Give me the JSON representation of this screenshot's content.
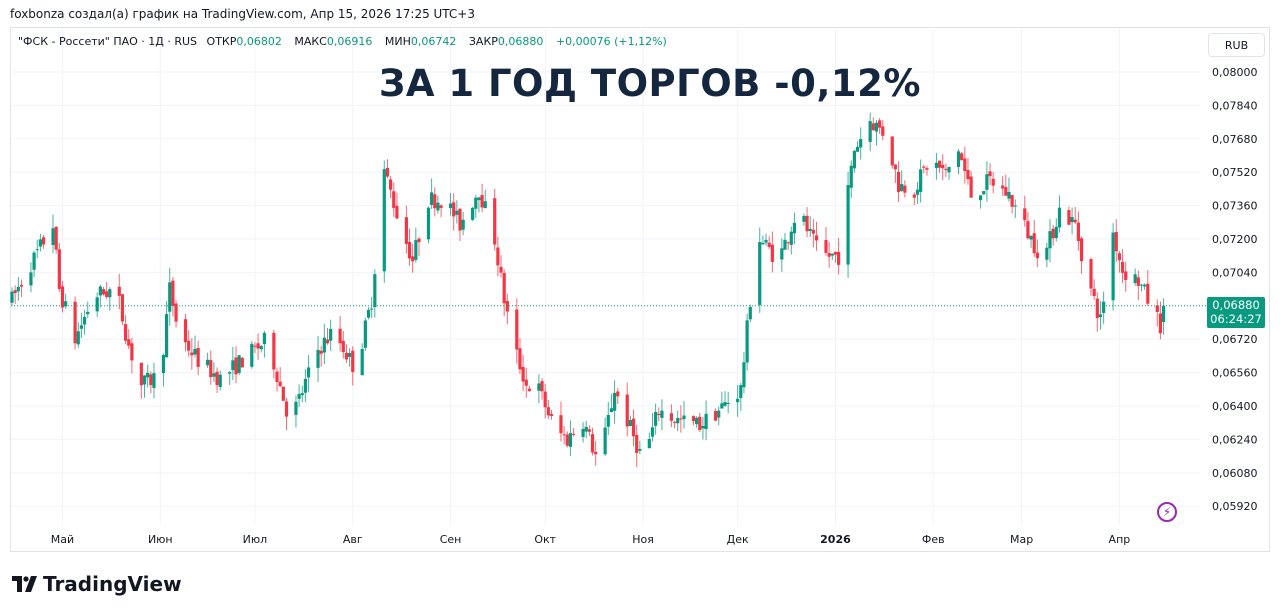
{
  "credit": "foxbonza создал(а) график на TradingView.com, Апр 15, 2026 17:25 UTC+3",
  "legend": {
    "symbol": "\"ФСК - Россети\" ПАО · 1Д · RUS",
    "open_label": "ОТКР",
    "open": "0,06802",
    "high_label": "МАКС",
    "high": "0,06916",
    "low_label": "МИН",
    "low": "0,06742",
    "close_label": "ЗАКР",
    "close": "0,06880",
    "change": "+0,00076 (+1,12%)"
  },
  "overlay_text": "ЗА 1 ГОД ТОРГОВ -0,12%",
  "currency_button": "RUB",
  "last_price": {
    "value": "0,06880",
    "countdown": "06:24:27"
  },
  "brand": "TradingView",
  "icons": {
    "alert": "lightning-icon",
    "logo": "tradingview-logo"
  },
  "colors": {
    "up": "#089981",
    "down": "#f23645",
    "overlay": "#15263f",
    "alert": "#9c27b0"
  },
  "chart_data": {
    "type": "candlestick",
    "interval": "1D",
    "currency": "RUB",
    "ylim": [
      0.0584,
      0.0808
    ],
    "y_ticks": [
      "0,08000",
      "0,07840",
      "0,07680",
      "0,07520",
      "0,07360",
      "0,07200",
      "0,07040",
      "0,06720",
      "0,06560",
      "0,06400",
      "0,06240",
      "0,06080",
      "0,05920"
    ],
    "x_ticks": [
      {
        "label": "Май",
        "date": "2025-05-01"
      },
      {
        "label": "Июн",
        "date": "2025-06-01"
      },
      {
        "label": "Июл",
        "date": "2025-07-01"
      },
      {
        "label": "Авг",
        "date": "2025-08-01"
      },
      {
        "label": "Сен",
        "date": "2025-09-01"
      },
      {
        "label": "Окт",
        "date": "2025-10-01"
      },
      {
        "label": "Ноя",
        "date": "2025-11-01"
      },
      {
        "label": "Дек",
        "date": "2025-12-01"
      },
      {
        "label": "2026",
        "date": "2026-01-01",
        "bold": true
      },
      {
        "label": "Фев",
        "date": "2026-02-01"
      },
      {
        "label": "Мар",
        "date": "2026-03-01"
      },
      {
        "label": "Апр",
        "date": "2026-04-01"
      }
    ],
    "grid": true,
    "last_candle": {
      "date": "2026-04-15",
      "open": 0.06802,
      "high": 0.06916,
      "low": 0.06742,
      "close": 0.0688
    },
    "approx_closes": [
      [
        "2025-04-15",
        0.0691
      ],
      [
        "2025-04-21",
        0.0708
      ],
      [
        "2025-04-28",
        0.0727
      ],
      [
        "2025-04-30",
        0.0696
      ],
      [
        "2025-05-05",
        0.0672
      ],
      [
        "2025-05-11",
        0.0693
      ],
      [
        "2025-05-18",
        0.0696
      ],
      [
        "2025-05-22",
        0.0669
      ],
      [
        "2025-05-26",
        0.065
      ],
      [
        "2025-06-01",
        0.0655
      ],
      [
        "2025-06-04",
        0.0696
      ],
      [
        "2025-06-07",
        0.0674
      ],
      [
        "2025-06-13",
        0.0662
      ],
      [
        "2025-06-20",
        0.0653
      ],
      [
        "2025-06-27",
        0.0662
      ],
      [
        "2025-07-05",
        0.0672
      ],
      [
        "2025-07-12",
        0.0633
      ],
      [
        "2025-07-15",
        0.0643
      ],
      [
        "2025-07-21",
        0.0667
      ],
      [
        "2025-07-26",
        0.0676
      ],
      [
        "2025-08-02",
        0.0657
      ],
      [
        "2025-08-07",
        0.0691
      ],
      [
        "2025-08-11",
        0.0753
      ],
      [
        "2025-08-16",
        0.0727
      ],
      [
        "2025-08-20",
        0.071
      ],
      [
        "2025-08-25",
        0.0739
      ],
      [
        "2025-08-30",
        0.0739
      ],
      [
        "2025-09-04",
        0.0727
      ],
      [
        "2025-09-10",
        0.0744
      ],
      [
        "2025-09-15",
        0.072
      ],
      [
        "2025-09-18",
        0.0691
      ],
      [
        "2025-09-21",
        0.0669
      ],
      [
        "2025-09-25",
        0.065
      ],
      [
        "2025-09-29",
        0.0648
      ],
      [
        "2025-10-04",
        0.0629
      ],
      [
        "2025-10-08",
        0.0624
      ],
      [
        "2025-10-13",
        0.0633
      ],
      [
        "2025-10-18",
        0.0612
      ],
      [
        "2025-10-23",
        0.0648
      ],
      [
        "2025-10-27",
        0.0633
      ],
      [
        "2025-11-01",
        0.0614
      ],
      [
        "2025-11-06",
        0.0638
      ],
      [
        "2025-11-12",
        0.0633
      ],
      [
        "2025-11-19",
        0.0631
      ],
      [
        "2025-11-25",
        0.0638
      ],
      [
        "2025-12-02",
        0.0648
      ],
      [
        "2025-12-05",
        0.0691
      ],
      [
        "2025-12-08",
        0.072
      ],
      [
        "2025-12-14",
        0.071
      ],
      [
        "2025-12-20",
        0.0734
      ],
      [
        "2025-12-27",
        0.0712
      ],
      [
        "2026-01-02",
        0.0712
      ],
      [
        "2026-01-07",
        0.0763
      ],
      [
        "2026-01-12",
        0.0777
      ],
      [
        "2026-01-17",
        0.077
      ],
      [
        "2026-01-21",
        0.0746
      ],
      [
        "2026-01-26",
        0.0744
      ],
      [
        "2026-01-31",
        0.0758
      ],
      [
        "2026-02-05",
        0.0751
      ],
      [
        "2026-02-09",
        0.0763
      ],
      [
        "2026-02-13",
        0.0741
      ],
      [
        "2026-02-19",
        0.0748
      ],
      [
        "2026-02-25",
        0.0741
      ],
      [
        "2026-03-04",
        0.072
      ],
      [
        "2026-03-08",
        0.071
      ],
      [
        "2026-03-13",
        0.0734
      ],
      [
        "2026-03-18",
        0.0727
      ],
      [
        "2026-03-22",
        0.07
      ],
      [
        "2026-03-26",
        0.0681
      ],
      [
        "2026-03-30",
        0.0723
      ],
      [
        "2026-04-02",
        0.0705
      ],
      [
        "2026-04-07",
        0.07
      ],
      [
        "2026-04-10",
        0.0691
      ],
      [
        "2026-04-14",
        0.0679
      ],
      [
        "2026-04-15",
        0.0688
      ]
    ]
  }
}
